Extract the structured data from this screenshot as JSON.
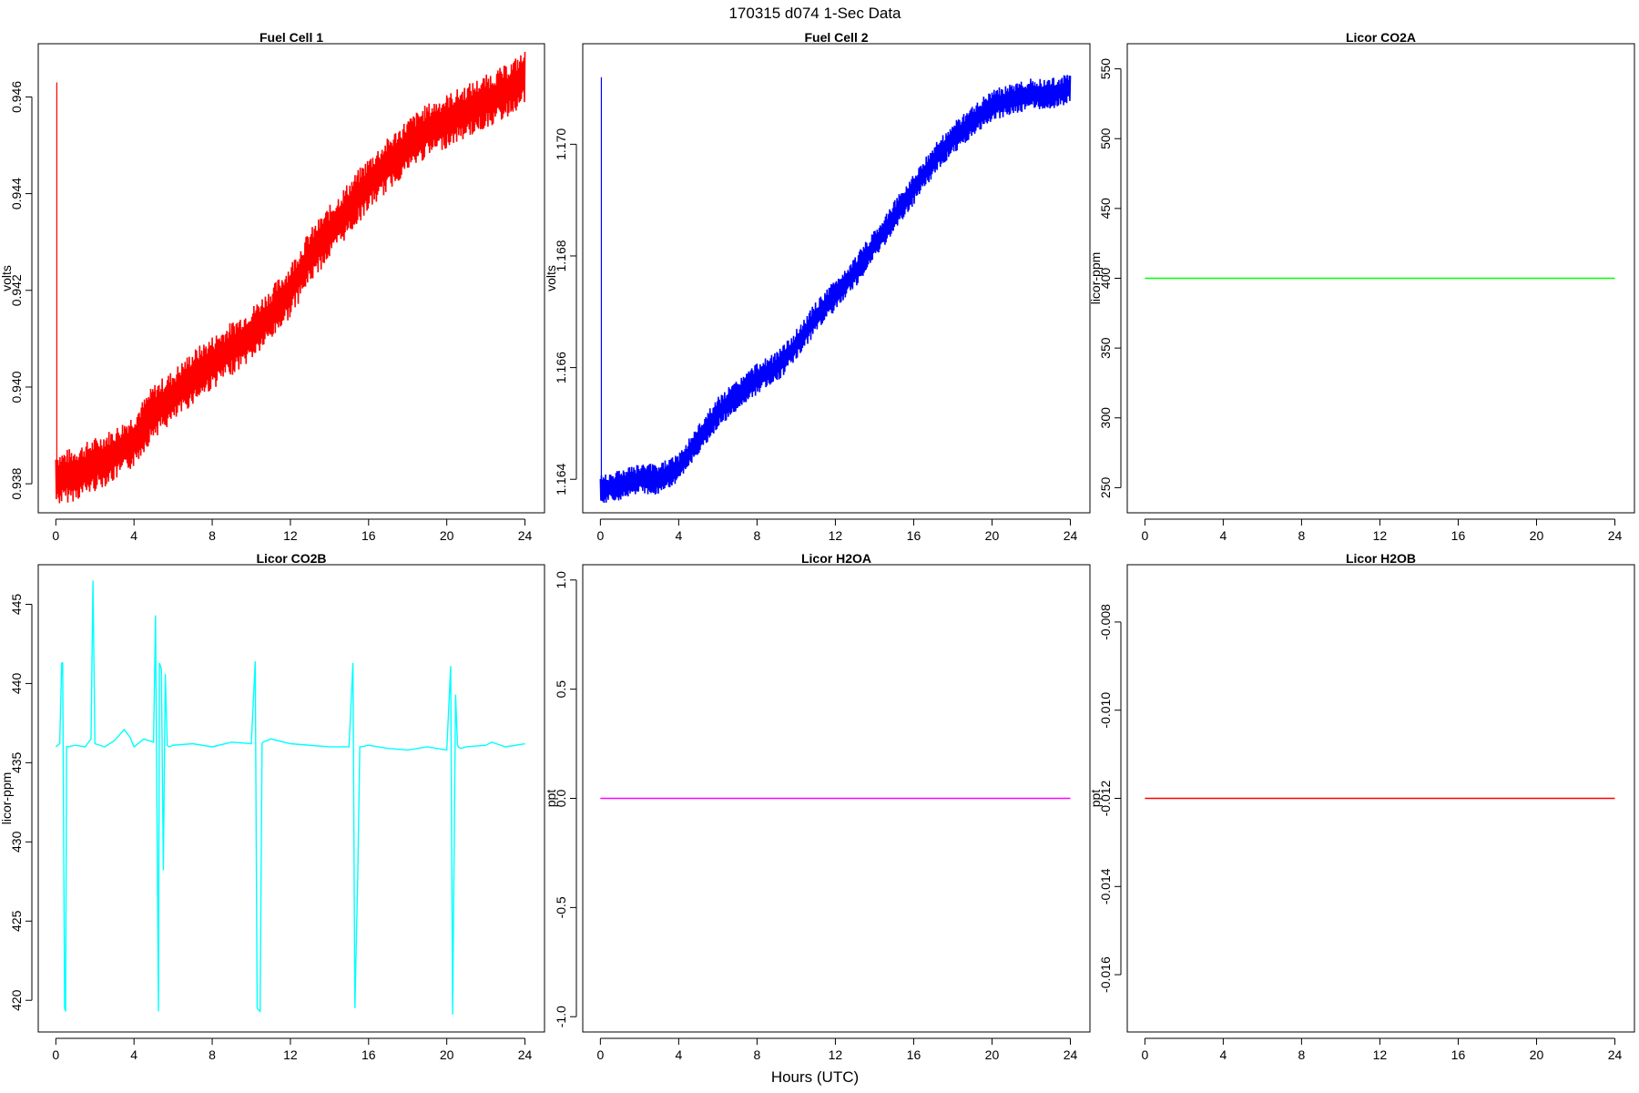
{
  "figure": {
    "title": "170315   d074   1-Sec Data",
    "xlabel": "Hours (UTC)"
  },
  "chart_data": [
    {
      "type": "line",
      "title": "Fuel Cell 1",
      "ylabel": "volts",
      "color": "#ff0000",
      "xlim": [
        -0.9,
        25.0
      ],
      "ylim": [
        0.9374,
        0.9471
      ],
      "xticks": [
        0,
        4,
        8,
        12,
        16,
        20,
        24
      ],
      "yticks": [
        0.938,
        0.94,
        0.942,
        0.944,
        0.946
      ],
      "ytick_labels": [
        "0.938",
        "0.940",
        "0.942",
        "0.944",
        "0.946"
      ],
      "band": 0.0004,
      "spike": {
        "x": 0.05,
        "from": 0.938,
        "to": 0.9463
      },
      "x": [
        0,
        1,
        2,
        3,
        4,
        5,
        6,
        7,
        8,
        9,
        10,
        11,
        12,
        13,
        14,
        15,
        16,
        17,
        18,
        19,
        20,
        21,
        22,
        23,
        24
      ],
      "y": [
        0.9381,
        0.9382,
        0.9384,
        0.9386,
        0.9389,
        0.9395,
        0.9398,
        0.9402,
        0.9405,
        0.9408,
        0.9411,
        0.9415,
        0.942,
        0.9427,
        0.9432,
        0.9437,
        0.9442,
        0.9446,
        0.945,
        0.9453,
        0.9455,
        0.9457,
        0.9459,
        0.9461,
        0.9464
      ]
    },
    {
      "type": "line",
      "title": "Fuel Cell 2",
      "ylabel": "volts",
      "color": "#0000ff",
      "xlim": [
        -0.9,
        25.0
      ],
      "ylim": [
        1.1634,
        1.1718
      ],
      "xticks": [
        0,
        4,
        8,
        12,
        16,
        20,
        24
      ],
      "yticks": [
        1.164,
        1.166,
        1.168,
        1.17
      ],
      "ytick_labels": [
        "1.164",
        "1.166",
        "1.168",
        "1.170"
      ],
      "band": 0.0002,
      "spike": {
        "x": 0.05,
        "from": 1.1638,
        "to": 1.1712
      },
      "x": [
        0,
        1,
        2,
        3,
        4,
        5,
        6,
        7,
        8,
        9,
        10,
        11,
        12,
        13,
        14,
        15,
        16,
        17,
        18,
        19,
        20,
        21,
        22,
        23,
        24
      ],
      "y": [
        1.1638,
        1.1639,
        1.164,
        1.164,
        1.1642,
        1.1647,
        1.1652,
        1.1655,
        1.1658,
        1.166,
        1.1664,
        1.1669,
        1.1673,
        1.1677,
        1.1682,
        1.1687,
        1.1692,
        1.1697,
        1.1701,
        1.1704,
        1.1707,
        1.1708,
        1.1709,
        1.1709,
        1.171
      ]
    },
    {
      "type": "line",
      "title": "Licor CO2A",
      "ylabel": "licor-ppm",
      "color": "#00ff00",
      "xlim": [
        -0.9,
        25.0
      ],
      "ylim": [
        232,
        568
      ],
      "xticks": [
        0,
        4,
        8,
        12,
        16,
        20,
        24
      ],
      "yticks": [
        250,
        300,
        350,
        400,
        450,
        500,
        550
      ],
      "ytick_labels": [
        "250",
        "300",
        "350",
        "400",
        "450",
        "500",
        "550"
      ],
      "x": [
        0,
        24
      ],
      "y": [
        400,
        400
      ]
    },
    {
      "type": "line",
      "title": "Licor CO2B",
      "ylabel": "licor-ppm",
      "color": "#00ffff",
      "xlim": [
        -0.9,
        25.0
      ],
      "ylim": [
        418,
        447.5
      ],
      "xticks": [
        0,
        4,
        8,
        12,
        16,
        20,
        24
      ],
      "yticks": [
        420,
        425,
        430,
        435,
        440,
        445
      ],
      "ytick_labels": [
        "420",
        "425",
        "430",
        "435",
        "440",
        "445"
      ],
      "x": [
        0,
        0.2,
        0.3,
        0.35,
        0.45,
        0.5,
        0.55,
        0.6,
        1.0,
        1.5,
        1.8,
        1.9,
        2.0,
        2.5,
        3.0,
        3.5,
        3.8,
        4.0,
        4.5,
        5.0,
        5.1,
        5.25,
        5.3,
        5.4,
        5.5,
        5.6,
        5.7,
        5.8,
        6.0,
        7.0,
        8.0,
        9.0,
        10.0,
        10.2,
        10.3,
        10.45,
        10.55,
        10.6,
        11.0,
        12.0,
        13.0,
        14.0,
        15.0,
        15.2,
        15.3,
        15.45,
        15.55,
        15.6,
        16.0,
        17.0,
        18.0,
        19.0,
        20.0,
        20.2,
        20.3,
        20.45,
        20.55,
        20.6,
        20.7,
        21.0,
        22.0,
        22.3,
        23.0,
        24.0
      ],
      "y": [
        436,
        436.2,
        441.3,
        441.3,
        419.5,
        419.3,
        436,
        436,
        436.1,
        436,
        436.5,
        446.5,
        436.2,
        436,
        436.4,
        437.1,
        436.6,
        436,
        436.5,
        436.3,
        444.3,
        419.3,
        441.3,
        440.9,
        428.2,
        440.6,
        436.1,
        436,
        436.1,
        436.2,
        436,
        436.3,
        436.2,
        441.4,
        419.5,
        419.3,
        436.2,
        436.3,
        436.5,
        436.2,
        436.1,
        436,
        436,
        441.3,
        419.5,
        428.1,
        436,
        436,
        436.1,
        435.9,
        435.8,
        436,
        435.8,
        441.1,
        419.1,
        439.3,
        436.1,
        436,
        435.9,
        436,
        436.1,
        436.3,
        436,
        436.2
      ]
    },
    {
      "type": "line",
      "title": "Licor H2OA",
      "ylabel": "ppt",
      "color": "#ff00ff",
      "xlim": [
        -0.9,
        25.0
      ],
      "ylim": [
        -1.07,
        1.07
      ],
      "xticks": [
        0,
        4,
        8,
        12,
        16,
        20,
        24
      ],
      "yticks": [
        -1.0,
        -0.5,
        0.0,
        0.5,
        1.0
      ],
      "ytick_labels": [
        "-1.0",
        "-0.5",
        "0.0",
        "0.5",
        "1.0"
      ],
      "x": [
        0,
        24
      ],
      "y": [
        0,
        0
      ]
    },
    {
      "type": "line",
      "title": "Licor H2OB",
      "ylabel": "ppt",
      "color": "#ff0000",
      "xlim": [
        -0.9,
        25.0
      ],
      "ylim": [
        -0.0173,
        -0.0067
      ],
      "xticks": [
        0,
        4,
        8,
        12,
        16,
        20,
        24
      ],
      "yticks": [
        -0.016,
        -0.014,
        -0.012,
        -0.01,
        -0.008
      ],
      "ytick_labels": [
        "-0.016",
        "-0.014",
        "-0.012",
        "-0.010",
        "-0.008"
      ],
      "x": [
        0,
        24
      ],
      "y": [
        -0.012,
        -0.012
      ]
    }
  ]
}
